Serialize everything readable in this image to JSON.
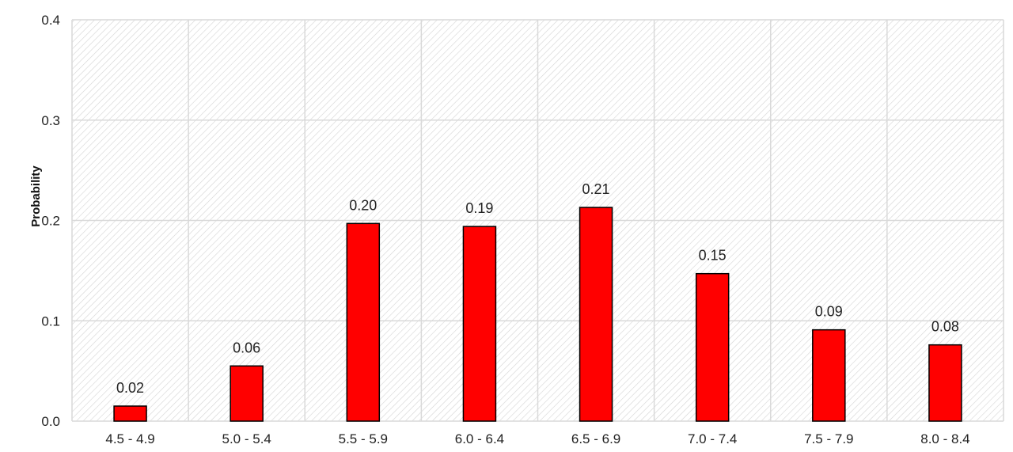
{
  "chart_data": {
    "type": "bar",
    "title": "",
    "xlabel": "",
    "ylabel": "Probability",
    "categories": [
      "4.5 - 4.9",
      "5.0 - 5.4",
      "5.5 - 5.9",
      "6.0 - 6.4",
      "6.5 - 6.9",
      "7.0 - 7.4",
      "7.5 - 7.9",
      "8.0 - 8.4"
    ],
    "values": [
      0.015,
      0.055,
      0.197,
      0.194,
      0.213,
      0.147,
      0.091,
      0.076
    ],
    "data_labels": [
      "0.02",
      "0.06",
      "0.20",
      "0.19",
      "0.21",
      "0.15",
      "0.09",
      "0.08"
    ],
    "y_ticks": [
      "0.0",
      "0.1",
      "0.2",
      "0.3",
      "0.4"
    ],
    "ylim": [
      0,
      0.4
    ],
    "grid": true,
    "legend": "none",
    "colors": {
      "bar_fill": "#ff0000",
      "bar_stroke": "#000000",
      "grid": "#d9d9d9",
      "hatch": "#d0d0d0"
    }
  }
}
